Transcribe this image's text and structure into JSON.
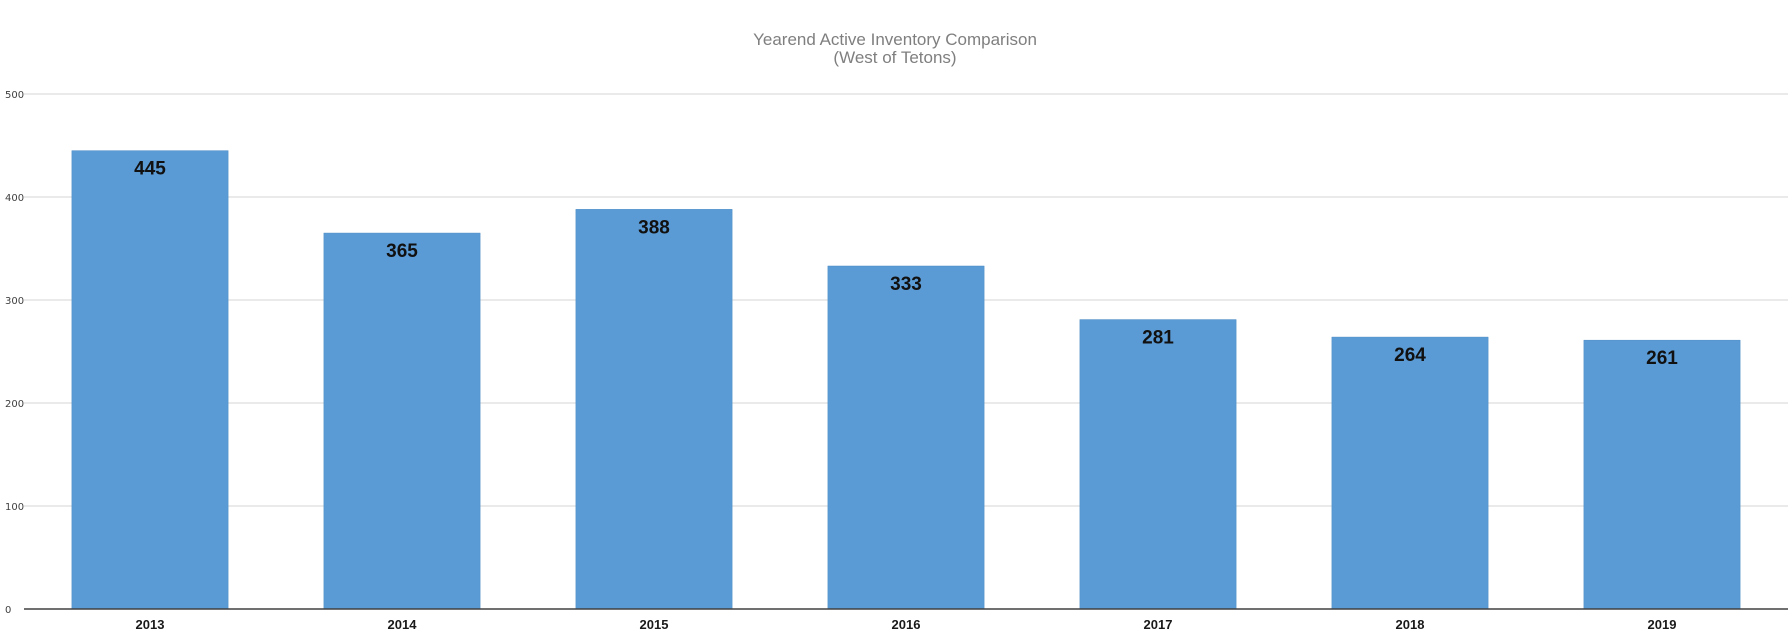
{
  "chart_data": {
    "type": "bar",
    "title": "Yearend Active Inventory Comparison",
    "subtitle": "(West of Tetons)",
    "xlabel": "",
    "ylabel": "",
    "categories": [
      "2013",
      "2014",
      "2015",
      "2016",
      "2017",
      "2018",
      "2019"
    ],
    "values": [
      445,
      365,
      388,
      333,
      281,
      264,
      261
    ],
    "ylim": [
      0,
      500
    ],
    "yticks": [
      0,
      100,
      200,
      300,
      400,
      500
    ],
    "grid": true,
    "legend": "none",
    "data_labels": true,
    "bar_color": "#5b9bd5"
  }
}
